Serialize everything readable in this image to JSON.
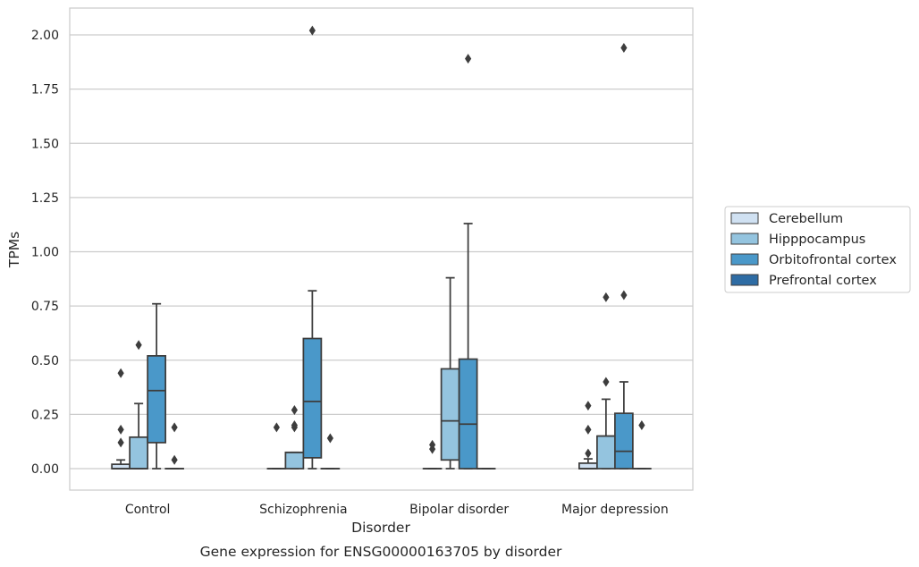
{
  "chart_data": {
    "type": "box",
    "xlabel": "Disorder",
    "ylabel": "TPMs",
    "caption": "Gene expression for ENSG00000163705 by disorder",
    "categories": [
      "Control",
      "Schizophrenia",
      "Bipolar disorder",
      "Major depression"
    ],
    "ylim": [
      -0.1,
      2.12
    ],
    "yticks": [
      "0.00",
      "0.25",
      "0.50",
      "0.75",
      "1.00",
      "1.25",
      "1.50",
      "1.75",
      "2.00"
    ],
    "ytick_values": [
      0,
      0.25,
      0.5,
      0.75,
      1.0,
      1.25,
      1.5,
      1.75,
      2.0
    ],
    "grid": "horizontal",
    "legend": {
      "placement": "right"
    },
    "series": [
      {
        "name": "Cerebellum",
        "color": "#d0e1f2",
        "boxes": [
          {
            "whislo": 0,
            "q1": 0,
            "med": 0,
            "q3": 0.02,
            "whishi": 0.04,
            "fliers": [
              0.12,
              0.18,
              0.44
            ]
          },
          {
            "whislo": 0,
            "q1": 0,
            "med": 0,
            "q3": 0,
            "whishi": 0,
            "fliers": [
              0.19
            ]
          },
          {
            "whislo": 0,
            "q1": 0,
            "med": 0,
            "q3": 0,
            "whishi": 0,
            "fliers": [
              0.09,
              0.11
            ]
          },
          {
            "whislo": 0,
            "q1": 0,
            "med": 0,
            "q3": 0.025,
            "whishi": 0.045,
            "fliers": [
              0.07,
              0.18,
              0.29
            ]
          }
        ]
      },
      {
        "name": "Hipppocampus",
        "color": "#94c4df",
        "boxes": [
          {
            "whislo": 0,
            "q1": 0,
            "med": 0,
            "q3": 0.145,
            "whishi": 0.3,
            "fliers": [
              0.57
            ]
          },
          {
            "whislo": 0,
            "q1": 0,
            "med": 0.075,
            "q3": 0.075,
            "whishi": 0.075,
            "fliers": [
              0.19,
              0.2,
              0.27
            ]
          },
          {
            "whislo": 0,
            "q1": 0.04,
            "med": 0.22,
            "q3": 0.46,
            "whishi": 0.88,
            "fliers": []
          },
          {
            "whislo": 0,
            "q1": 0,
            "med": 0.15,
            "q3": 0.15,
            "whishi": 0.32,
            "fliers": [
              0.4,
              0.79
            ]
          }
        ]
      },
      {
        "name": "Orbitofrontal cortex",
        "color": "#4a98c9",
        "boxes": [
          {
            "whislo": 0,
            "q1": 0.12,
            "med": 0.36,
            "q3": 0.52,
            "whishi": 0.76,
            "fliers": []
          },
          {
            "whislo": 0,
            "q1": 0.05,
            "med": 0.31,
            "q3": 0.6,
            "whishi": 0.82,
            "fliers": [
              2.02
            ]
          },
          {
            "whislo": 0,
            "q1": 0,
            "med": 0.205,
            "q3": 0.505,
            "whishi": 1.13,
            "fliers": [
              1.89
            ]
          },
          {
            "whislo": 0,
            "q1": 0,
            "med": 0.08,
            "q3": 0.255,
            "whishi": 0.4,
            "fliers": [
              0.8,
              1.94
            ]
          }
        ]
      },
      {
        "name": "Prefrontal cortex",
        "color": "#2e6ca4",
        "boxes": [
          {
            "whislo": 0,
            "q1": 0,
            "med": 0,
            "q3": 0,
            "whishi": 0,
            "fliers": [
              0.04,
              0.19
            ]
          },
          {
            "whislo": 0,
            "q1": 0,
            "med": 0,
            "q3": 0,
            "whishi": 0,
            "fliers": [
              0.14
            ]
          },
          {
            "whislo": 0,
            "q1": 0,
            "med": 0,
            "q3": 0,
            "whishi": 0,
            "fliers": []
          },
          {
            "whislo": 0,
            "q1": 0,
            "med": 0,
            "q3": 0,
            "whishi": 0,
            "fliers": [
              0.2
            ]
          }
        ]
      }
    ]
  }
}
